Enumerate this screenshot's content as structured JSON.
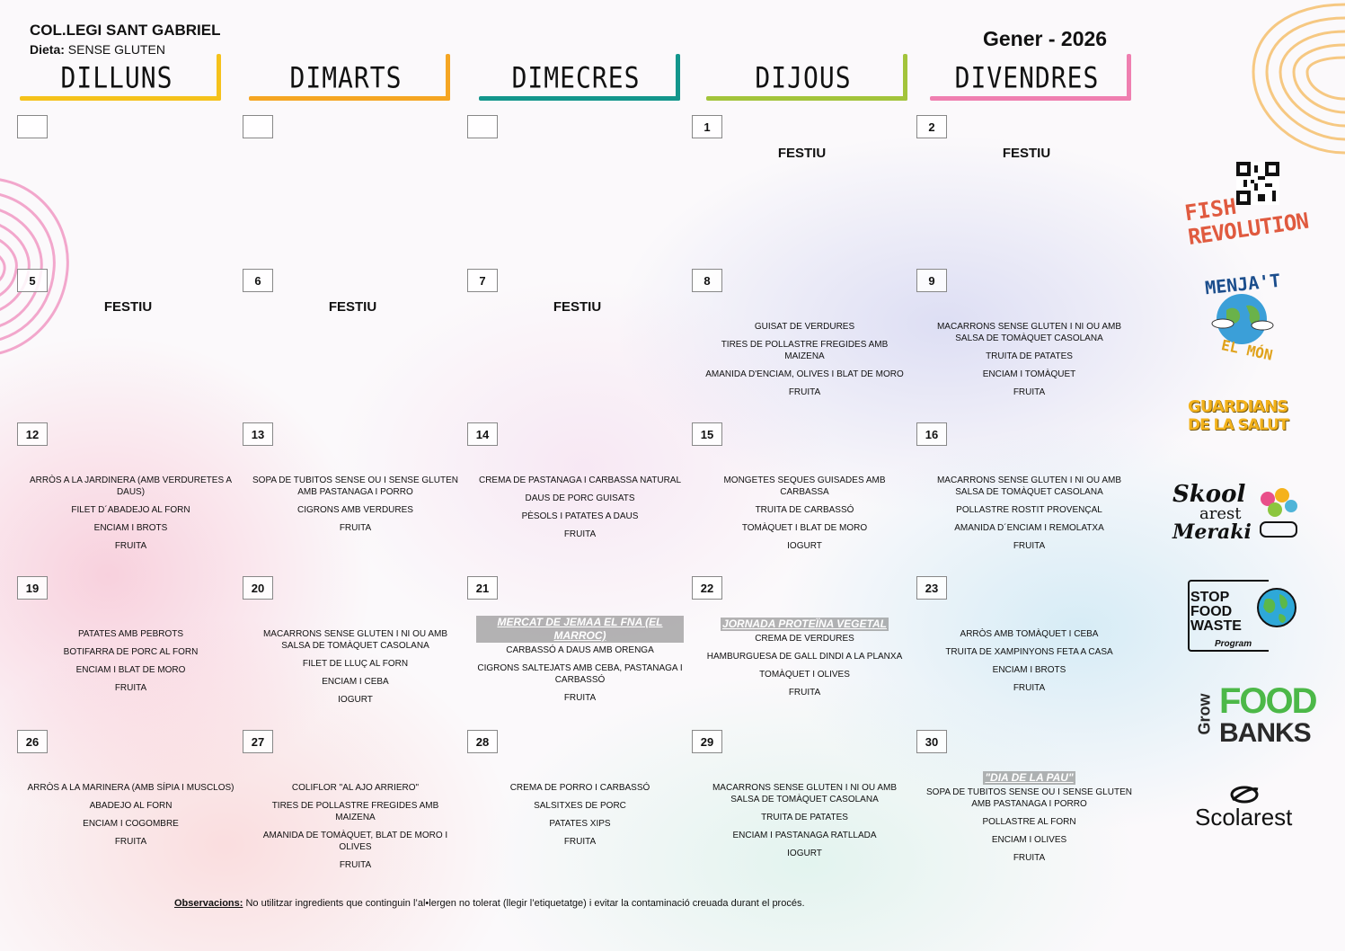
{
  "header": {
    "school": "COL.LEGI SANT GABRIEL",
    "diet_label": "Dieta:",
    "diet_value": "SENSE GLUTEN",
    "month": "Gener - 2026"
  },
  "days": [
    {
      "name": "DILLUNS",
      "color": "#f5c21b"
    },
    {
      "name": "DIMARTS",
      "color": "#f5a623"
    },
    {
      "name": "DIMECRES",
      "color": "#13968c"
    },
    {
      "name": "DIJOUS",
      "color": "#a3c43b"
    },
    {
      "name": "DIVENDRES",
      "color": "#ef7fb0"
    }
  ],
  "weeks": [
    [
      {
        "num": "",
        "festiu": "",
        "items": []
      },
      {
        "num": "",
        "festiu": "",
        "items": []
      },
      {
        "num": "",
        "festiu": "",
        "items": []
      },
      {
        "num": "1",
        "festiu": "FESTIU",
        "items": []
      },
      {
        "num": "2",
        "festiu": "FESTIU",
        "items": []
      }
    ],
    [
      {
        "num": "5",
        "festiu": "FESTIU",
        "items": []
      },
      {
        "num": "6",
        "festiu": "FESTIU",
        "items": []
      },
      {
        "num": "7",
        "festiu": "FESTIU",
        "items": []
      },
      {
        "num": "8",
        "festiu": "",
        "items": [
          "GUISAT DE VERDURES",
          "TIRES DE POLLASTRE FREGIDES AMB MAIZENA",
          "AMANIDA D'ENCIAM, OLIVES I BLAT DE MORO",
          "FRUITA"
        ]
      },
      {
        "num": "9",
        "festiu": "",
        "items": [
          "MACARRONS SENSE GLUTEN I NI OU AMB SALSA DE TOMÀQUET CASOLANA",
          "TRUITA DE PATATES",
          "ENCIAM I TOMÀQUET",
          "FRUITA"
        ]
      }
    ],
    [
      {
        "num": "12",
        "festiu": "",
        "items": [
          "ARRÒS A LA JARDINERA (AMB VERDURETES A DAUS)",
          "FILET D´ABADEJO AL FORN",
          "ENCIAM I BROTS",
          "FRUITA"
        ]
      },
      {
        "num": "13",
        "festiu": "",
        "items": [
          "SOPA DE TUBITOS SENSE OU I SENSE GLUTEN AMB PASTANAGA I PORRO",
          "CIGRONS AMB VERDURES",
          "FRUITA"
        ]
      },
      {
        "num": "14",
        "festiu": "",
        "items": [
          "CREMA DE PASTANAGA I CARBASSA NATURAL",
          "DAUS DE PORC GUISATS",
          "PÈSOLS I PATATES A DAUS",
          "FRUITA"
        ]
      },
      {
        "num": "15",
        "festiu": "",
        "items": [
          "MONGETES SEQUES GUISADES AMB CARBASSA",
          "TRUITA DE CARBASSÓ",
          "TOMÀQUET I BLAT DE MORO",
          "IOGURT"
        ]
      },
      {
        "num": "16",
        "festiu": "",
        "items": [
          "MACARRONS SENSE GLUTEN I NI OU AMB SALSA DE TOMÀQUET CASOLANA",
          "POLLASTRE ROSTIT PROVENÇAL",
          "AMANIDA D´ENCIAM I REMOLATXA",
          "FRUITA"
        ]
      }
    ],
    [
      {
        "num": "19",
        "festiu": "",
        "items": [
          "PATATES AMB PEBROTS",
          "BOTIFARRA DE PORC AL FORN",
          "ENCIAM I BLAT DE MORO",
          "FRUITA"
        ]
      },
      {
        "num": "20",
        "festiu": "",
        "items": [
          "MACARRONS SENSE GLUTEN I NI OU AMB SALSA DE TOMÀQUET CASOLANA",
          "FILET DE LLUÇ AL FORN",
          "ENCIAM I CEBA",
          "IOGURT"
        ]
      },
      {
        "num": "21",
        "festiu": "",
        "special": "MERCAT DE JEMAA EL FNA (EL MARROC)",
        "items": [
          "CARBASSÓ A DAUS AMB ORENGA",
          "CIGRONS SALTEJATS AMB CEBA, PASTANAGA I CARBASSÓ",
          "FRUITA"
        ]
      },
      {
        "num": "22",
        "festiu": "",
        "special": "JORNADA PROTEÏNA VEGETAL",
        "items": [
          "CREMA DE VERDURES",
          "HAMBURGUESA DE GALL DINDI A LA PLANXA",
          "TOMÀQUET I OLIVES",
          "FRUITA"
        ]
      },
      {
        "num": "23",
        "festiu": "",
        "items": [
          "ARRÒS AMB TOMÀQUET I CEBA",
          "TRUITA DE XAMPINYONS FETA A CASA",
          "ENCIAM I BROTS",
          "FRUITA"
        ]
      }
    ],
    [
      {
        "num": "26",
        "festiu": "",
        "items": [
          "ARRÒS A LA MARINERA (AMB SÍPIA I MUSCLOS)",
          "ABADEJO AL FORN",
          "ENCIAM I COGOMBRE",
          "FRUITA"
        ]
      },
      {
        "num": "27",
        "festiu": "",
        "items": [
          "COLIFLOR \"AL AJO ARRIERO\"",
          "TIRES DE POLLASTRE FREGIDES AMB MAIZENA",
          "AMANIDA DE TOMÀQUET, BLAT DE MORO I OLIVES",
          "FRUITA"
        ]
      },
      {
        "num": "28",
        "festiu": "",
        "items": [
          "CREMA DE PORRO I CARBASSÓ",
          "SALSITXES DE PORC",
          "PATATES XIPS",
          "FRUITA"
        ]
      },
      {
        "num": "29",
        "festiu": "",
        "items": [
          "MACARRONS SENSE GLUTEN I NI OU AMB SALSA DE TOMÀQUET CASOLANA",
          "TRUITA DE PATATES",
          "ENCIAM I PASTANAGA RATLLADA",
          "IOGURT"
        ]
      },
      {
        "num": "30",
        "festiu": "",
        "special": "\"DIA DE LA PAU\"",
        "items": [
          "SOPA DE TUBITOS SENSE OU I SENSE GLUTEN AMB PASTANAGA I PORRO",
          "POLLASTRE AL FORN",
          "ENCIAM I OLIVES",
          "FRUITA"
        ]
      }
    ]
  ],
  "observations": {
    "label": "Observacions:",
    "text": " No utilitzar ingredients que continguin l’al•lergen no tolerat (llegir l’etiquetatge) i evitar la contaminació creuada durant el procés."
  },
  "logos": {
    "fish_1": "FISH",
    "fish_2": "REVOLUTION",
    "menja_1": "MENJA'T",
    "menja_2": "EL MÓN",
    "guardians_1": "GUARDIANS",
    "guardians_2": "DE LA SALUT",
    "skool_1": "Skool",
    "skool_2": "arest",
    "skool_3": "Meraki",
    "stop_1": "STOP",
    "stop_2": "FOOD",
    "stop_3": "WASTE",
    "stop_4": "Program",
    "grow_1": "Grow",
    "grow_2": "FOOD",
    "grow_3": "BANKS",
    "scolarest": "Scolarest"
  }
}
